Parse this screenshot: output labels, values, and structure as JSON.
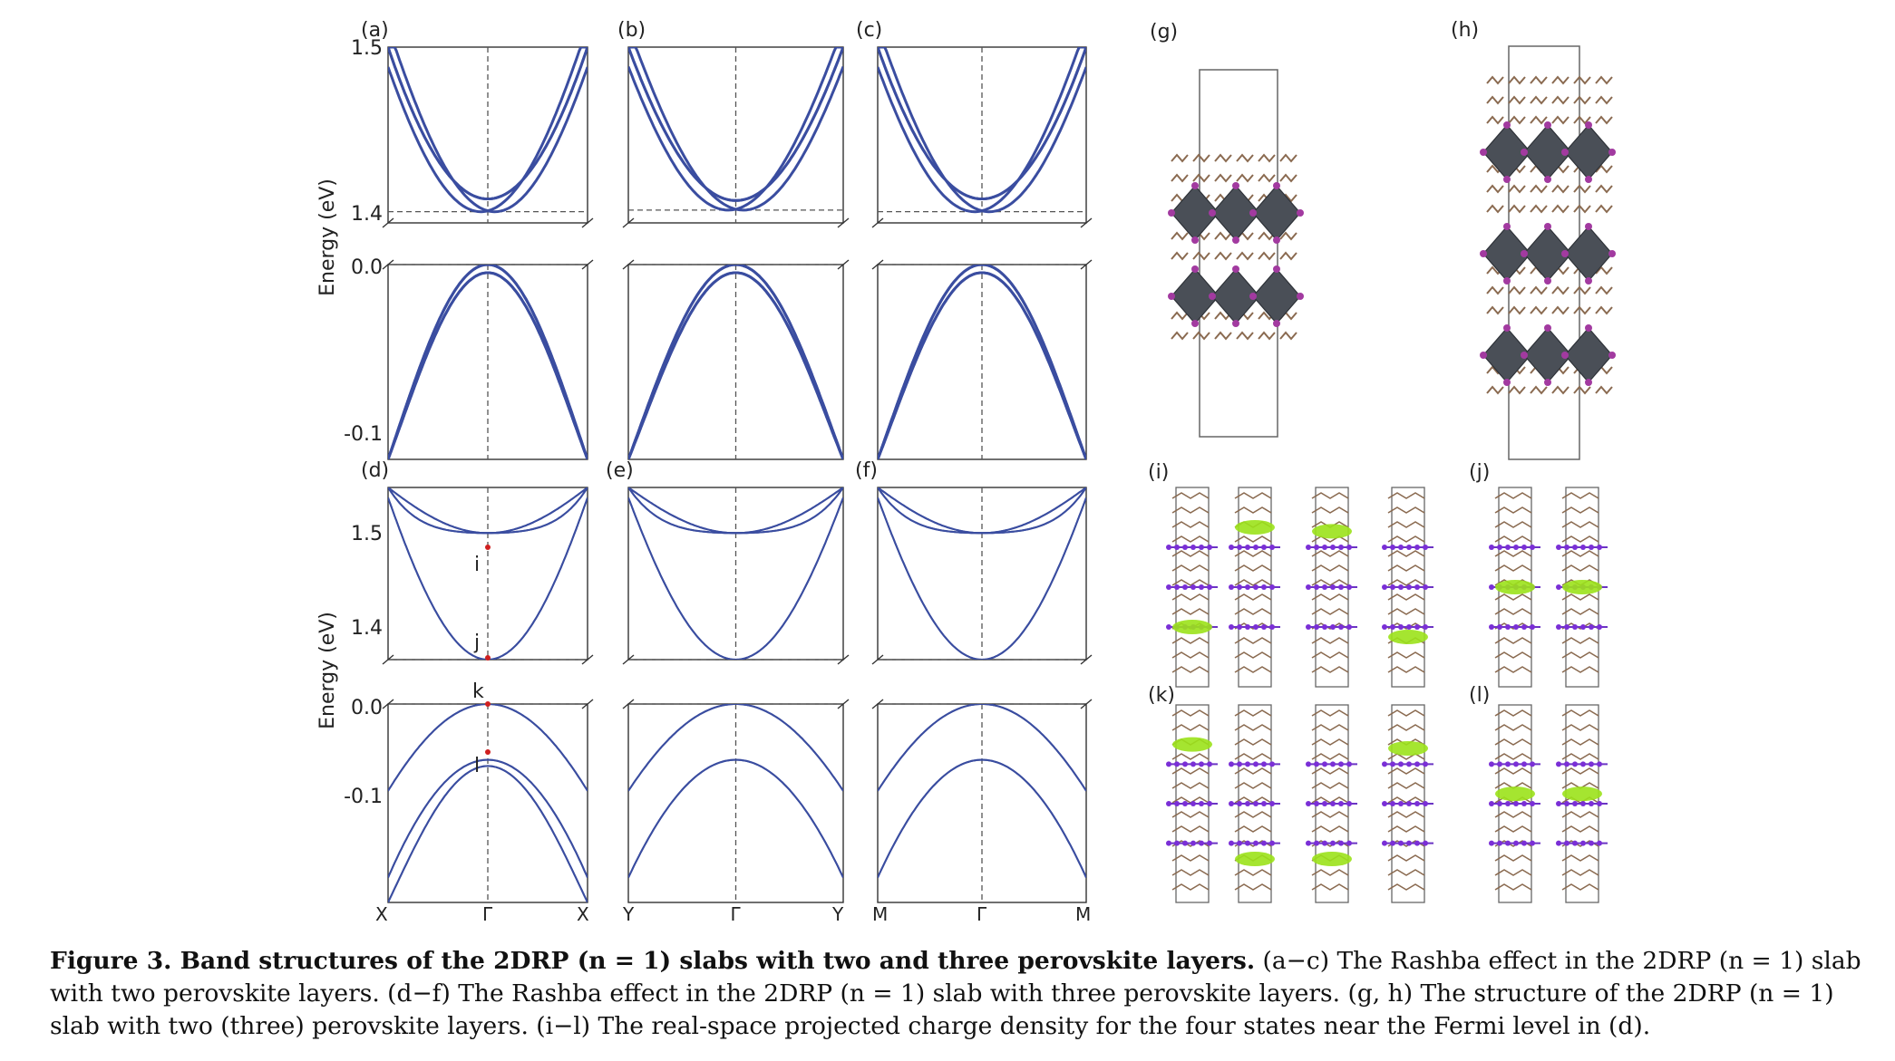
{
  "figure": {
    "panel_labels": [
      "(a)",
      "(b)",
      "(c)",
      "(d)",
      "(e)",
      "(f)",
      "(g)",
      "(h)",
      "(i)",
      "(j)",
      "(k)",
      "(l)"
    ],
    "ylabel": "Energy (eV)",
    "state_labels": [
      "i",
      "j",
      "k",
      "l"
    ],
    "caption_lead": "Figure 3. Band structures of the 2DRP (n = 1) slabs with two and three perovskite layers.",
    "caption_body": "(a−c) The Rashba effect in the 2DRP (n = 1) slab with two perovskite layers. (d−f) The Rashba effect in the 2DRP (n = 1) slab with three perovskite layers. (g, h) The structure of the 2DRP (n = 1) slab with two (three) perovskite layers. (i−l) The real-space projected charge density for the four states near the Fermi level in (d)."
  },
  "colors": {
    "band": "#3a4da0",
    "ref_line": "#555555",
    "octahedron": "#4a4f57",
    "iodine": "#a23aa0",
    "density": "#9be21a"
  },
  "chart_data": [
    {
      "type": "line",
      "panel": "(a)",
      "ylabel": "Energy (eV)",
      "x_ticks": [
        "X",
        "Γ",
        "X"
      ],
      "y_ticks_top": [
        "1.5",
        "1.4"
      ],
      "y_ticks_bottom": [
        "0.0",
        "-0.1"
      ],
      "axis_break": true,
      "ylim_top": [
        1.39,
        1.5
      ],
      "ylim_bottom": [
        -0.12,
        0.0
      ],
      "k": [
        -1,
        -0.5,
        0,
        0.5,
        1
      ],
      "conduction_bands": [
        [
          1.5,
          1.429,
          1.397,
          1.429,
          1.5
        ],
        [
          1.5,
          1.43,
          1.405,
          1.43,
          1.5
        ]
      ],
      "valence_bands": [
        [
          -0.12,
          -0.045,
          0.0,
          -0.045,
          -0.12
        ],
        [
          -0.12,
          -0.05,
          -0.005,
          -0.05,
          -0.12
        ]
      ]
    },
    {
      "type": "line",
      "panel": "(b)",
      "x_ticks": [
        "Y",
        "Γ",
        "Y"
      ],
      "axis_break": true,
      "ylim_top": [
        1.39,
        1.5
      ],
      "ylim_bottom": [
        -0.12,
        0.0
      ],
      "k": [
        -1,
        -0.5,
        0,
        0.5,
        1
      ],
      "conduction_bands": [
        [
          1.5,
          1.43,
          1.398,
          1.43,
          1.5
        ],
        [
          1.5,
          1.431,
          1.404,
          1.431,
          1.5
        ]
      ],
      "valence_bands": [
        [
          -0.12,
          -0.045,
          0.0,
          -0.045,
          -0.12
        ],
        [
          -0.12,
          -0.05,
          -0.005,
          -0.05,
          -0.12
        ]
      ]
    },
    {
      "type": "line",
      "panel": "(c)",
      "x_ticks": [
        "M",
        "Γ",
        "M"
      ],
      "axis_break": true,
      "ylim_top": [
        1.39,
        1.5
      ],
      "ylim_bottom": [
        -0.12,
        0.0
      ],
      "k": [
        -1,
        -0.5,
        0,
        0.5,
        1
      ],
      "conduction_bands": [
        [
          1.5,
          1.429,
          1.397,
          1.429,
          1.5
        ],
        [
          1.5,
          1.43,
          1.405,
          1.43,
          1.5
        ]
      ],
      "valence_bands": [
        [
          -0.12,
          -0.045,
          0.0,
          -0.045,
          -0.12
        ],
        [
          -0.12,
          -0.05,
          -0.005,
          -0.05,
          -0.12
        ]
      ]
    },
    {
      "type": "line",
      "panel": "(d)",
      "ylabel": "Energy (eV)",
      "x_ticks": [
        "X",
        "Γ",
        "X"
      ],
      "y_ticks_top": [
        "1.5",
        "1.4"
      ],
      "y_ticks_bottom": [
        "0.0",
        "-0.1"
      ],
      "axis_break": true,
      "ylim_top": [
        1.37,
        1.54
      ],
      "ylim_bottom": [
        -0.16,
        0.0
      ],
      "k": [
        -1,
        -0.5,
        0,
        0.5,
        1
      ],
      "conduction_bands": [
        [
          1.53,
          1.42,
          1.37,
          1.42,
          1.53
        ],
        [
          1.54,
          1.49,
          1.495,
          1.49,
          1.54
        ],
        [
          1.54,
          1.51,
          1.495,
          1.51,
          1.54
        ]
      ],
      "valence_bands": [
        [
          -0.07,
          -0.02,
          0.0,
          -0.02,
          -0.07
        ],
        [
          -0.14,
          -0.07,
          -0.045,
          -0.07,
          -0.14
        ],
        [
          -0.16,
          -0.09,
          -0.05,
          -0.09,
          -0.16
        ]
      ]
    },
    {
      "type": "line",
      "panel": "(e)",
      "x_ticks": [
        "Y",
        "Γ",
        "Y"
      ],
      "axis_break": true,
      "ylim_top": [
        1.37,
        1.54
      ],
      "ylim_bottom": [
        -0.16,
        0.0
      ],
      "k": [
        -1,
        -0.5,
        0,
        0.5,
        1
      ],
      "conduction_bands": [
        [
          1.53,
          1.42,
          1.37,
          1.42,
          1.53
        ],
        [
          1.54,
          1.49,
          1.495,
          1.49,
          1.54
        ],
        [
          1.54,
          1.51,
          1.495,
          1.51,
          1.54
        ]
      ],
      "valence_bands": [
        [
          -0.07,
          -0.02,
          0.0,
          -0.02,
          -0.07
        ],
        [
          -0.14,
          -0.07,
          -0.045,
          -0.07,
          -0.14
        ]
      ]
    },
    {
      "type": "line",
      "panel": "(f)",
      "x_ticks": [
        "M",
        "Γ",
        "M"
      ],
      "axis_break": true,
      "ylim_top": [
        1.37,
        1.54
      ],
      "ylim_bottom": [
        -0.16,
        0.0
      ],
      "k": [
        -1,
        -0.5,
        0,
        0.5,
        1
      ],
      "conduction_bands": [
        [
          1.53,
          1.42,
          1.37,
          1.42,
          1.53
        ],
        [
          1.54,
          1.49,
          1.495,
          1.49,
          1.54
        ],
        [
          1.54,
          1.51,
          1.495,
          1.51,
          1.54
        ]
      ],
      "valence_bands": [
        [
          -0.07,
          -0.02,
          0.0,
          -0.02,
          -0.07
        ],
        [
          -0.14,
          -0.07,
          -0.045,
          -0.07,
          -0.14
        ]
      ]
    }
  ]
}
